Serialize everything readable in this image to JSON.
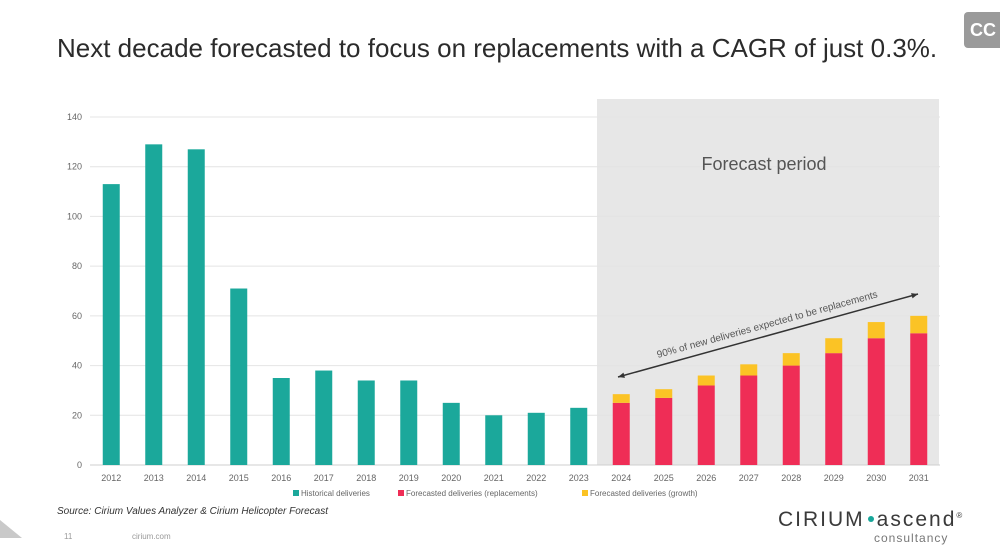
{
  "title": "Next decade forecasted to focus on replacements with a CAGR of just 0.3%.",
  "corner_label": "CC",
  "source": "Source: Cirium Values Analyzer & Cirium Helicopter Forecast",
  "page_number": "11",
  "site": "cirium.com",
  "logo": {
    "brand": "CIRIUM",
    "product": "ascend",
    "sub": "consultancy",
    "mark": "®"
  },
  "colors": {
    "historical": "#1ba89b",
    "replacement": "#ef2d56",
    "growth": "#fbc325",
    "forecast_bg": "#e7e7e7"
  },
  "chart_data": {
    "type": "bar",
    "stacked": true,
    "categories": [
      "2012",
      "2013",
      "2014",
      "2015",
      "2016",
      "2017",
      "2018",
      "2019",
      "2020",
      "2021",
      "2022",
      "2023",
      "2024",
      "2025",
      "2026",
      "2027",
      "2028",
      "2029",
      "2030",
      "2031"
    ],
    "series": [
      {
        "name": "Historical deliveries",
        "values": [
          113,
          129,
          127,
          71,
          35,
          38,
          34,
          34,
          25,
          20,
          21,
          23,
          null,
          null,
          null,
          null,
          null,
          null,
          null,
          null
        ]
      },
      {
        "name": "Forecasted deliveries (replacements)",
        "values": [
          null,
          null,
          null,
          null,
          null,
          null,
          null,
          null,
          null,
          null,
          null,
          null,
          25,
          27,
          32,
          36,
          40,
          45,
          51,
          53
        ]
      },
      {
        "name": "Forecasted deliveries (growth)",
        "values": [
          null,
          null,
          null,
          null,
          null,
          null,
          null,
          null,
          null,
          null,
          null,
          null,
          3.5,
          3.5,
          4,
          4.5,
          5,
          6,
          6.5,
          7
        ]
      }
    ],
    "ylim": [
      0,
      140
    ],
    "yticks": [
      "0",
      "20",
      "40",
      "60",
      "80",
      "100",
      "120",
      "140"
    ],
    "grid": true,
    "legend_position": "bottom",
    "forecast_start_index": 12,
    "annotations": {
      "forecast_label": "Forecast period",
      "arrow_label": "90% of new deliveries expected to be replacements"
    }
  }
}
